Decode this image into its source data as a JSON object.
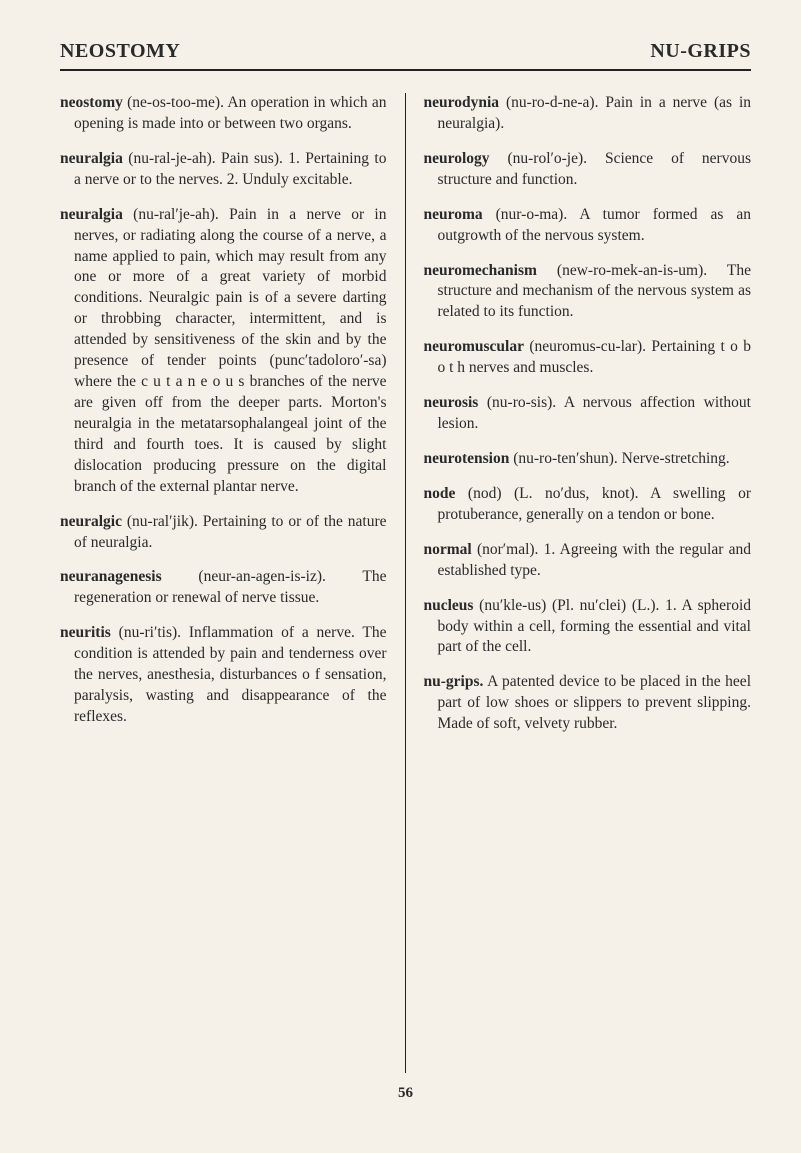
{
  "header": {
    "left": "NEOSTOMY",
    "right": "NU-GRIPS"
  },
  "page_number": "56",
  "left_column": [
    {
      "term": "neostomy",
      "body": " (ne-os-too-me). An operation in which an opening is made into or between two organs."
    },
    {
      "term": "neuralgia",
      "body": " (nu-ral-je-ah). Pain sus). 1. Pertaining to a nerve or to the nerves. 2. Unduly excitable."
    },
    {
      "term": "neuralgia",
      "body": " (nu-ral′je-ah). Pain in a nerve or in nerves, or radiating along the course of a nerve, a name applied to pain, which may result from any one or more of a great variety of morbid conditions. Neuralgic pain is of a severe darting or throbbing character, intermittent, and is attended by sensitiveness of the skin and by the presence of tender points (punc′tadoloro′-sa) where the c u t a n e o u s branches of the nerve are given off from the deeper parts. Morton's neuralgia in the metatarsophalangeal joint of the third and fourth toes. It is caused by slight dislocation producing pressure on the digital branch of the external plantar nerve."
    },
    {
      "term": "neuralgic",
      "body": " (nu-ral′jik). Pertaining to or of the nature of neuralgia."
    },
    {
      "term": "neuranagenesis",
      "body": " (neur-an-agen-is-iz). The regeneration or renewal of nerve tissue."
    },
    {
      "term": "neuritis",
      "body": " (nu-ri′tis). Inflammation of a nerve. The condition is attended by pain and tenderness over the nerves, anesthesia, disturbances o f sensation, paralysis, wasting and disappearance of the reflexes."
    }
  ],
  "right_column": [
    {
      "term": "neurodynia",
      "body": " (nu-ro-d-ne-a). Pain in a nerve (as in neuralgia)."
    },
    {
      "term": "neurology",
      "body": " (nu-rol′o-je). Science of nervous structure and function."
    },
    {
      "term": "neuroma",
      "body": " (nur-o-ma). A tumor formed as an outgrowth of the nervous system."
    },
    {
      "term": "neuromechanism",
      "body": " (new-ro-mek-an-is-um). The structure and mechanism of the nervous system as related to its function."
    },
    {
      "term": "neuromuscular",
      "body": " (neuromus-cu-lar). Pertaining t o b o t h nerves and muscles."
    },
    {
      "term": "neurosis",
      "body": " (nu-ro-sis). A nervous affection without lesion."
    },
    {
      "term": "neurotension",
      "body": " (nu-ro-ten′shun). Nerve-stretching."
    },
    {
      "term": "node",
      "body": " (nod) (L. no′dus, knot). A swelling or protuberance, generally on a tendon or bone."
    },
    {
      "term": "normal",
      "body": " (nor′mal). 1. Agreeing with the regular and established type."
    },
    {
      "term": "nucleus",
      "body": " (nu′kle-us) (Pl. nu′clei) (L.). 1. A spheroid body within a cell, forming the essential and vital part of the cell."
    },
    {
      "term": "nu-grips.",
      "body": " A patented device to be placed in the heel part of low shoes or slippers to prevent slipping. Made of soft, velvety rubber."
    }
  ]
}
